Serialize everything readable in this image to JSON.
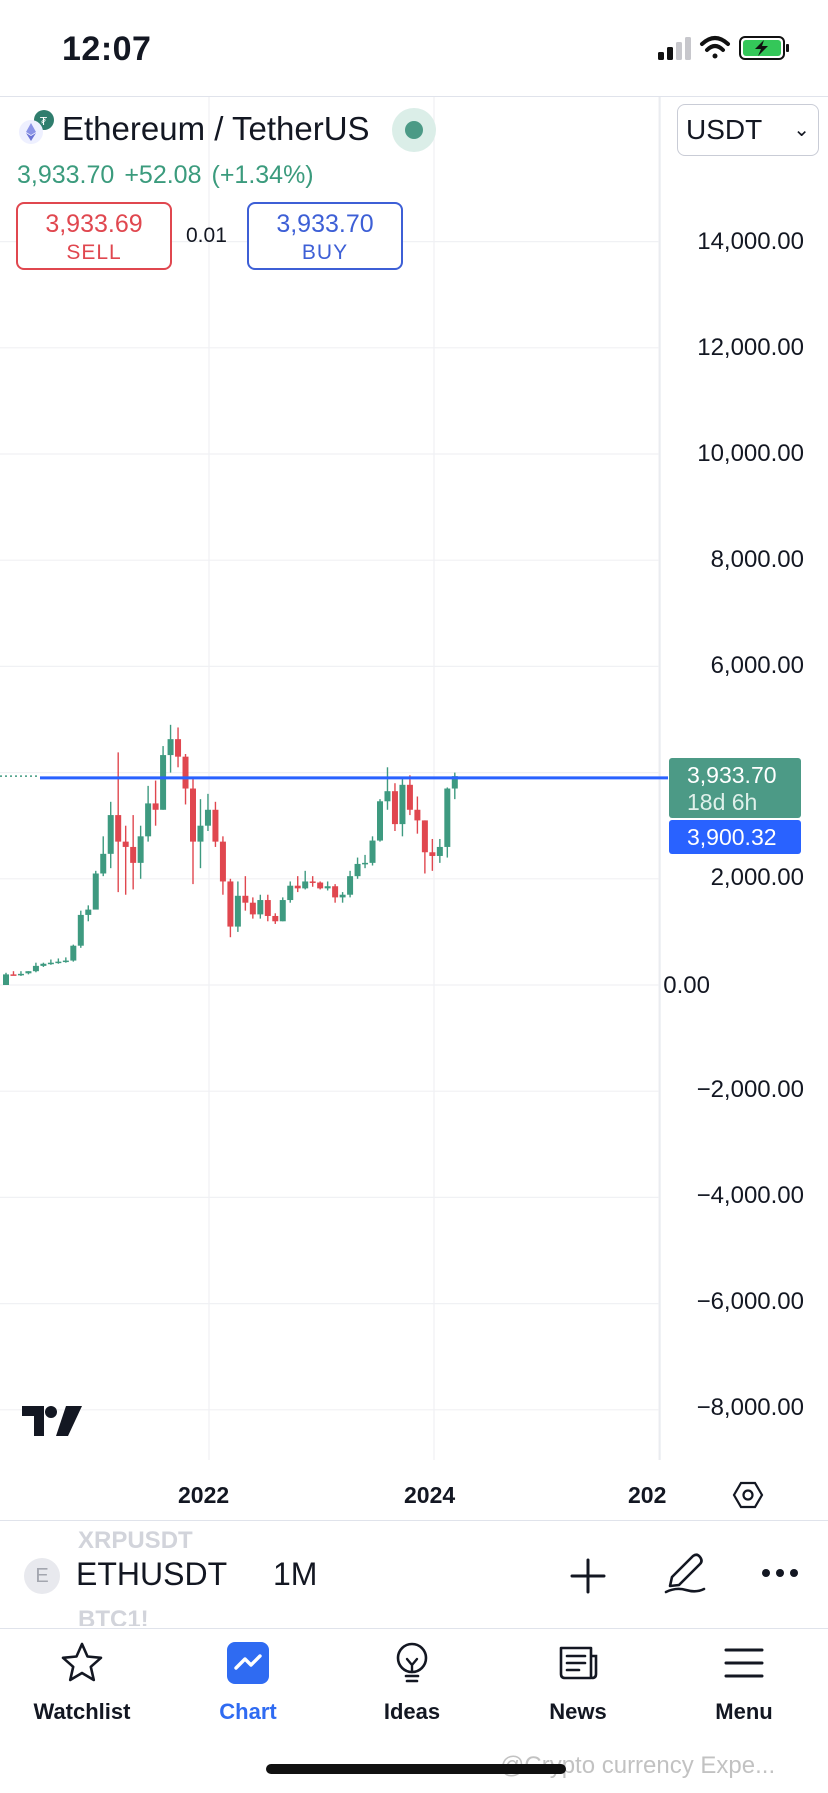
{
  "status_bar": {
    "time": "12:07"
  },
  "header": {
    "pair": "Ethereum / TetherUS",
    "last": "3,933.70",
    "change": "+52.08",
    "change_pct": "(+1.34%)",
    "sell_price": "3,933.69",
    "sell_label": "SELL",
    "spread": "0.01",
    "buy_price": "3,933.70",
    "buy_label": "BUY",
    "currency": "USDT"
  },
  "price_badges": {
    "last_price": "3,933.70",
    "countdown": "18d 6h",
    "line_price": "3,900.32"
  },
  "colors": {
    "up": "#3e9a80",
    "down": "#e0474f",
    "line": "#2962ff",
    "accent": "#2f6bf2"
  },
  "symbol_bar": {
    "ghost_above": "XRPUSDT",
    "symbol": "ETHUSDT",
    "ghost_below": "BTC1!",
    "interval": "1M",
    "icon": "E"
  },
  "tabs": [
    {
      "label": "Watchlist",
      "icon": "star-icon"
    },
    {
      "label": "Chart",
      "icon": "chart-icon"
    },
    {
      "label": "Ideas",
      "icon": "lightbulb-icon"
    },
    {
      "label": "News",
      "icon": "news-icon"
    },
    {
      "label": "Menu",
      "icon": "hamburger-icon"
    }
  ],
  "watermark": "@Crypto currency Expe...",
  "chart_data": {
    "type": "candlestick",
    "interval": "1M",
    "y_ticks": [
      "14,000.00",
      "12,000.00",
      "10,000.00",
      "8,000.00",
      "6,000.00",
      "2,000.00",
      "0.00",
      "−2,000.00",
      "−4,000.00",
      "−6,000.00",
      "−8,000.00"
    ],
    "x_ticks": [
      "2022",
      "2024",
      "202"
    ],
    "horizontal_line": 3900.32,
    "ylim": [
      -8500,
      15500
    ],
    "candles": [
      [
        0,
        200,
        230,
        150,
        200
      ],
      [
        200,
        220,
        260,
        180,
        190
      ],
      [
        190,
        220,
        260,
        170,
        210
      ],
      [
        220,
        230,
        260,
        200,
        260
      ],
      [
        260,
        340,
        420,
        240,
        360
      ],
      [
        360,
        380,
        420,
        340,
        400
      ],
      [
        400,
        420,
        480,
        380,
        420
      ],
      [
        420,
        440,
        500,
        400,
        440
      ],
      [
        440,
        480,
        520,
        420,
        460
      ],
      [
        460,
        600,
        760,
        440,
        740
      ],
      [
        740,
        1330,
        1400,
        700,
        1320
      ],
      [
        1320,
        1400,
        1500,
        1200,
        1420
      ],
      [
        1420,
        1900,
        2150,
        1550,
        2100
      ],
      [
        2100,
        2500,
        2800,
        2050,
        2470
      ],
      [
        2470,
        3300,
        3450,
        2200,
        3200
      ],
      [
        3200,
        2650,
        4380,
        1750,
        2700
      ],
      [
        2700,
        2500,
        3000,
        1700,
        2600
      ],
      [
        2600,
        2300,
        3200,
        1800,
        2300
      ],
      [
        2300,
        2750,
        3000,
        2000,
        2800
      ],
      [
        2800,
        3400,
        3750,
        2700,
        3420
      ],
      [
        3420,
        3350,
        3850,
        3000,
        3300
      ],
      [
        3300,
        4280,
        4500,
        3300,
        4330
      ],
      [
        4330,
        4650,
        4900,
        4000,
        4630
      ],
      [
        4630,
        4700,
        4850,
        4100,
        4300
      ],
      [
        4300,
        3700,
        4350,
        3400,
        3700
      ],
      [
        3700,
        2700,
        3900,
        1900,
        2700
      ],
      [
        2700,
        2900,
        3500,
        2200,
        3000
      ],
      [
        3000,
        3300,
        3600,
        2900,
        3300
      ],
      [
        3300,
        2800,
        3450,
        2600,
        2700
      ],
      [
        2700,
        1950,
        2800,
        1700,
        1950
      ],
      [
        1950,
        1050,
        2000,
        900,
        1100
      ],
      [
        1100,
        1700,
        1950,
        1000,
        1680
      ],
      [
        1680,
        1550,
        2050,
        1400,
        1550
      ],
      [
        1550,
        1350,
        1650,
        1250,
        1330
      ],
      [
        1330,
        1600,
        1700,
        1250,
        1600
      ],
      [
        1600,
        1300,
        1700,
        1200,
        1300
      ],
      [
        1300,
        1280,
        1350,
        1150,
        1200
      ],
      [
        1200,
        1600,
        1650,
        1200,
        1600
      ],
      [
        1600,
        1850,
        1950,
        1550,
        1870
      ],
      [
        1870,
        1800,
        2050,
        1750,
        1820
      ],
      [
        1820,
        1850,
        2150,
        1800,
        1950
      ],
      [
        1950,
        1920,
        2050,
        1850,
        1930
      ],
      [
        1930,
        1850,
        1950,
        1800,
        1820
      ],
      [
        1820,
        1850,
        1950,
        1780,
        1860
      ],
      [
        1860,
        1650,
        1900,
        1550,
        1650
      ],
      [
        1650,
        1650,
        1750,
        1550,
        1700
      ],
      [
        1700,
        2050,
        2150,
        1650,
        2050
      ],
      [
        2050,
        2250,
        2400,
        2000,
        2280
      ],
      [
        2280,
        2300,
        2450,
        2200,
        2300
      ],
      [
        2300,
        2700,
        2800,
        2250,
        2720
      ],
      [
        2720,
        3400,
        3500,
        2700,
        3460
      ],
      [
        3460,
        3700,
        4100,
        3300,
        3650
      ],
      [
        3650,
        3000,
        3800,
        2900,
        3030
      ],
      [
        3030,
        3750,
        3900,
        2800,
        3770
      ],
      [
        3770,
        3400,
        3950,
        3200,
        3300
      ],
      [
        3300,
        3250,
        3550,
        2850,
        3100
      ],
      [
        3100,
        2500,
        3100,
        2100,
        2500
      ],
      [
        2500,
        2600,
        2750,
        2150,
        2430
      ],
      [
        2430,
        2650,
        2750,
        2300,
        2600
      ],
      [
        2600,
        3700,
        3720,
        2400,
        3700
      ],
      [
        3700,
        3933.7,
        4000,
        3500,
        3933.7
      ]
    ]
  }
}
